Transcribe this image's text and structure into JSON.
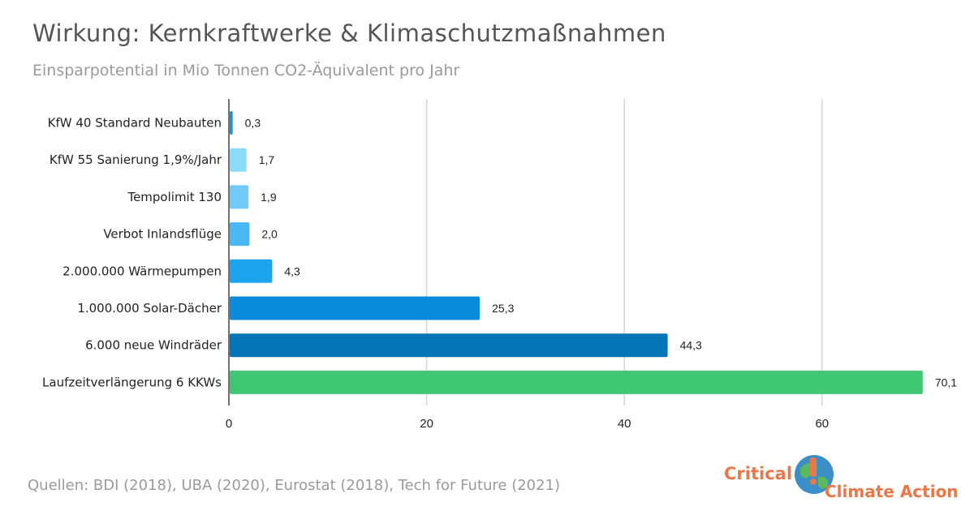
{
  "title": "Wirkung: Kernkraftwerke & Klimaschutzmaßnahmen",
  "subtitle": "Einsparpotential in Mio Tonnen CO2-Äquivalent pro Jahr",
  "source": "Quellen: BDI (2018), UBA (2020), Eurostat (2018), Tech for Future (2021)",
  "logo": {
    "word1": "Critical",
    "word2": "Climate Action",
    "globe_icon": "globe-icon",
    "color": "#e8774a"
  },
  "chart_data": {
    "type": "bar",
    "orientation": "horizontal",
    "categories": [
      "KfW 40 Standard Neubauten",
      "KfW 55 Sanierung 1,9%/Jahr",
      "Tempolimit 130",
      "Verbot Inlandsflüge",
      "2.000.000 Wärmepumpen",
      "1.000.000 Solar-Dächer",
      "6.000 neue Windräder",
      "Laufzeitverlängerung 6 KKWs"
    ],
    "values": [
      0.3,
      1.7,
      1.9,
      2.0,
      4.3,
      25.3,
      44.3,
      70.1
    ],
    "value_labels": [
      "0,3",
      "1,7",
      "1,9",
      "2,0",
      "4,3",
      "25,3",
      "44,3",
      "70,1"
    ],
    "colors": [
      "#1f8fd6",
      "#8ddcf7",
      "#6fcaf7",
      "#4ab8f5",
      "#1ea4ef",
      "#0a8cdc",
      "#0575b8",
      "#40c773"
    ],
    "xlim": [
      0,
      72
    ],
    "xticks": [
      0,
      20,
      40,
      60
    ],
    "grid": true
  }
}
